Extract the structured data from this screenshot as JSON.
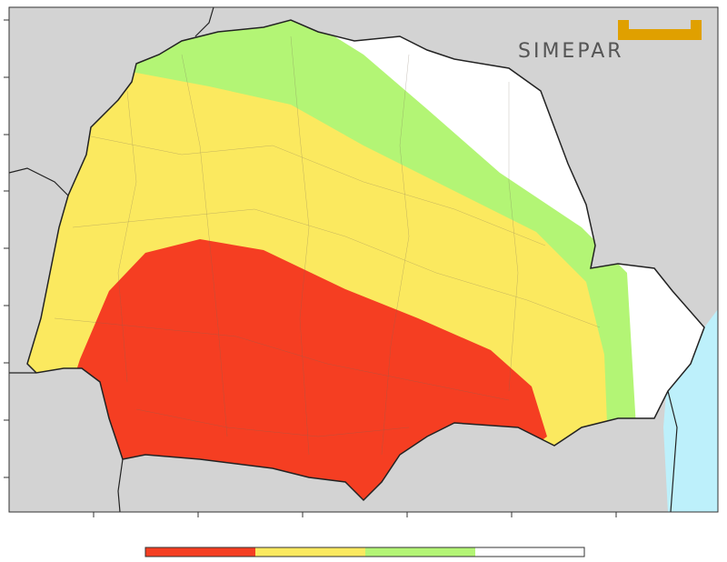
{
  "logo": {
    "text": "SIMEPAR"
  }
}
